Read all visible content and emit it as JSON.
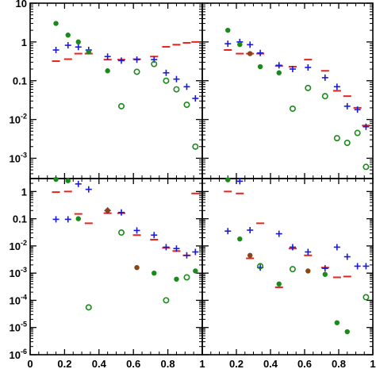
{
  "chart_data": {
    "type": "scatter",
    "layout": "2x2 shared-axes panels",
    "xlim": [
      0,
      1
    ],
    "x_ticks": [
      "0",
      "0.2",
      "0.4",
      "0.6",
      "0.8",
      "1"
    ],
    "log_y": true,
    "colors": {
      "red": "#e8221c",
      "blue": "#1818e0",
      "green": "#1a8a1a",
      "brown": "#8b4513"
    },
    "marker_key": {
      "red": "horizontal dash",
      "blue": "plus",
      "green_filled": "filled circle",
      "green_open": "open circle",
      "brown": "filled circle"
    },
    "panels": [
      {
        "id": "top-left",
        "ylim": [
          0.0003,
          10
        ],
        "y_tick_labels": [
          "10",
          "1",
          "0.1",
          "10-2",
          "10-3"
        ],
        "series": [
          {
            "marker": "red",
            "x": [
              0.15,
              0.22,
              0.28,
              0.34,
              0.45,
              0.53,
              0.62,
              0.72,
              0.79,
              0.85,
              0.91,
              0.96
            ],
            "y": [
              0.32,
              0.36,
              0.5,
              0.5,
              0.35,
              0.35,
              0.36,
              0.42,
              0.75,
              0.85,
              0.95,
              1.0
            ]
          },
          {
            "marker": "blue",
            "x": [
              0.15,
              0.22,
              0.28,
              0.34,
              0.45,
              0.53,
              0.62,
              0.72,
              0.79,
              0.85,
              0.91,
              0.96
            ],
            "y": [
              0.62,
              0.82,
              0.74,
              0.62,
              0.42,
              0.33,
              0.35,
              0.35,
              0.16,
              0.11,
              0.07,
              0.035
            ]
          },
          {
            "marker": "green_filled",
            "x": [
              0.15,
              0.22,
              0.28,
              0.34,
              0.45
            ],
            "y": [
              3.0,
              1.5,
              1.0,
              0.55,
              0.18
            ]
          },
          {
            "marker": "green_open",
            "x": [
              0.53,
              0.62,
              0.72,
              0.79,
              0.85,
              0.91,
              0.96
            ],
            "y": [
              0.022,
              0.17,
              0.27,
              0.1,
              0.06,
              0.024,
              0.002
            ]
          }
        ]
      },
      {
        "id": "top-right",
        "ylim": [
          0.0003,
          10
        ],
        "y_tick_labels": [],
        "series": [
          {
            "marker": "red",
            "x": [
              0.15,
              0.22,
              0.28,
              0.34,
              0.45,
              0.53,
              0.62,
              0.72,
              0.79,
              0.85,
              0.91,
              0.96
            ],
            "y": [
              0.62,
              0.5,
              0.5,
              0.5,
              0.24,
              0.23,
              0.35,
              0.18,
              0.055,
              0.04,
              0.02,
              0.007
            ]
          },
          {
            "marker": "blue",
            "x": [
              0.15,
              0.22,
              0.28,
              0.34,
              0.45,
              0.53,
              0.62,
              0.72,
              0.79,
              0.85,
              0.91,
              0.96
            ],
            "y": [
              0.9,
              1.0,
              0.85,
              0.52,
              0.25,
              0.2,
              0.22,
              0.12,
              0.07,
              0.022,
              0.018,
              0.0065
            ]
          },
          {
            "marker": "green_filled",
            "x": [
              0.15,
              0.22,
              0.34,
              0.45
            ],
            "y": [
              2.0,
              0.86,
              0.23,
              0.16
            ]
          },
          {
            "marker": "brown",
            "x": [
              0.28
            ],
            "y": [
              0.5
            ]
          },
          {
            "marker": "green_open",
            "x": [
              0.53,
              0.62,
              0.72,
              0.79,
              0.85,
              0.91,
              0.96
            ],
            "y": [
              0.019,
              0.065,
              0.04,
              0.0033,
              0.0025,
              0.0045,
              0.0006
            ]
          }
        ]
      },
      {
        "id": "bottom-left",
        "ylim": [
          1e-06,
          3
        ],
        "y_tick_labels": [
          "1",
          "0.1",
          "10-2",
          "10-3",
          "10-4",
          "10-5",
          "10-6"
        ],
        "series": [
          {
            "marker": "red",
            "x": [
              0.15,
              0.22,
              0.28,
              0.34,
              0.45,
              0.53,
              0.62,
              0.72,
              0.79,
              0.85,
              0.91,
              0.96
            ],
            "y": [
              0.95,
              1.0,
              0.15,
              0.068,
              0.16,
              0.16,
              0.025,
              0.017,
              0.0085,
              0.0065,
              0.0045,
              0.85
            ]
          },
          {
            "marker": "blue",
            "x": [
              0.15,
              0.22,
              0.28,
              0.34,
              0.45,
              0.53,
              0.62,
              0.72,
              0.79,
              0.85,
              0.91,
              0.96
            ],
            "y": [
              0.095,
              0.095,
              1.9,
              1.2,
              0.2,
              0.17,
              0.037,
              0.025,
              0.009,
              0.008,
              0.0045,
              0.006
            ]
          },
          {
            "marker": "green_filled",
            "x": [
              0.15,
              0.22,
              0.28,
              0.72,
              0.85,
              0.96
            ],
            "y": [
              2.8,
              2.5,
              0.1,
              0.001,
              0.0006,
              0.0012
            ]
          },
          {
            "marker": "brown",
            "x": [
              0.45,
              0.62
            ],
            "y": [
              0.2,
              0.0016
            ]
          },
          {
            "marker": "green_open",
            "x": [
              0.34,
              0.53,
              0.79,
              0.91
            ],
            "y": [
              5.5e-05,
              0.031,
              0.0001,
              0.0007
            ]
          }
        ]
      },
      {
        "id": "bottom-right",
        "ylim": [
          1e-06,
          3
        ],
        "y_tick_labels": [],
        "series": [
          {
            "marker": "red",
            "x": [
              0.15,
              0.22,
              0.28,
              0.34,
              0.45,
              0.53,
              0.62,
              0.72,
              0.79,
              0.85
            ],
            "y": [
              1.0,
              0.85,
              0.0035,
              0.068,
              0.0003,
              0.008,
              0.0045,
              0.0016,
              0.0007,
              0.00075
            ]
          },
          {
            "marker": "blue",
            "x": [
              0.15,
              0.22,
              0.28,
              0.34,
              0.45,
              0.53,
              0.62,
              0.72,
              0.79,
              0.85,
              0.91,
              0.96
            ],
            "y": [
              0.035,
              2.4,
              0.038,
              0.0016,
              0.028,
              0.009,
              0.006,
              0.0015,
              0.009,
              0.004,
              0.0018,
              0.0018
            ]
          },
          {
            "marker": "green_filled",
            "x": [
              0.15,
              0.22,
              0.45,
              0.72,
              0.79,
              0.85
            ],
            "y": [
              2.7,
              0.018,
              0.0004,
              0.0009,
              1.5e-05,
              7e-06
            ]
          },
          {
            "marker": "brown",
            "x": [
              0.28,
              0.62
            ],
            "y": [
              0.0045,
              0.0012
            ]
          },
          {
            "marker": "green_open",
            "x": [
              0.34,
              0.53,
              0.96
            ],
            "y": [
              0.0018,
              0.0014,
              0.00013
            ]
          }
        ]
      }
    ]
  }
}
